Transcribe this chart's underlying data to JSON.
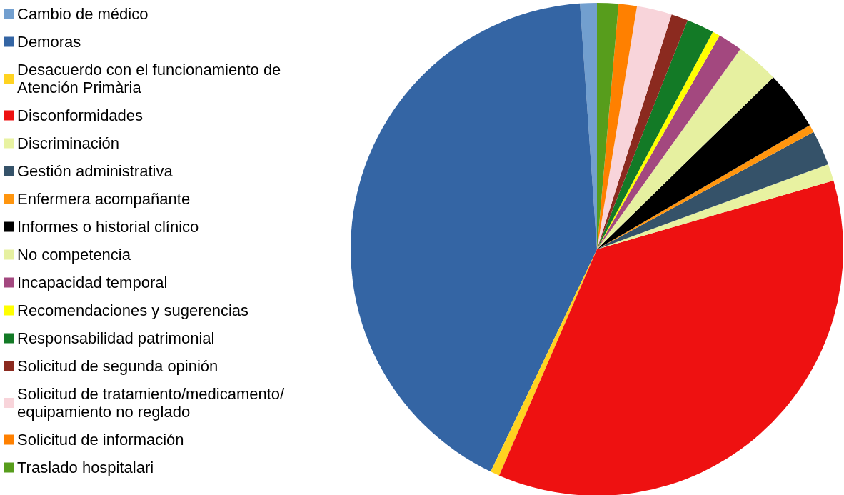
{
  "chart_data": {
    "type": "pie",
    "legend": "left",
    "categories": [
      "Cambio de médico",
      "Demoras",
      "Desacuerdo con el funcionamiento de Atención Primària",
      "Disconformidades",
      "Discriminación",
      "Gestión administrativa",
      "Enfermera acompañante",
      "Informes o historial clínico",
      "No competencia",
      "Incapacidad temporal",
      "Recomendaciones y sugerencias",
      "Responsabilidad patrimonial",
      "Solicitud de segunda opinión",
      "Solicitud de tratamiento/medicamento/equipamiento no reglado",
      "Solicitud de información",
      "Traslado hospitalari"
    ],
    "values": [
      1.1,
      41.8,
      0.6,
      36.0,
      1.1,
      2.3,
      0.5,
      3.9,
      2.8,
      1.6,
      0.5,
      1.8,
      1.1,
      2.3,
      1.2,
      1.4
    ],
    "colors": [
      "#729fcf",
      "#3465a4",
      "#ffd320",
      "#ee1111",
      "#e8f2a1",
      "#355269",
      "#ff950e",
      "#000000",
      "#e6f0a0",
      "#a3487f",
      "#ffff00",
      "#137a26",
      "#8b2a1f",
      "#f8d4da",
      "#ff8000",
      "#579d1c"
    ]
  }
}
